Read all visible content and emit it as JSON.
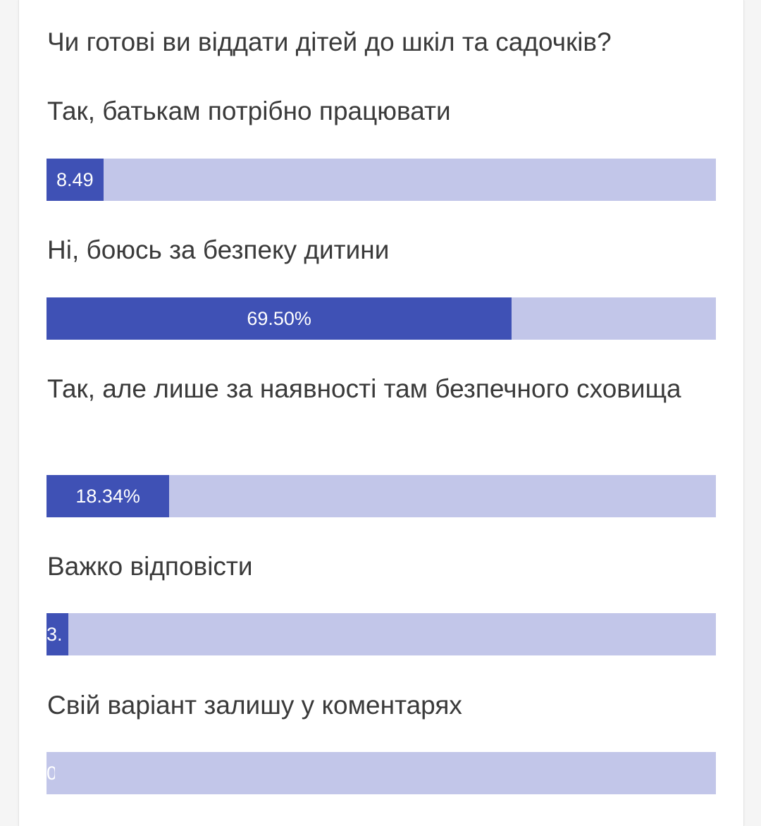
{
  "poll": {
    "question": "Чи готові ви віддати дітей до шкіл та садочків?",
    "options": [
      {
        "label": "Так, батькам потрібно працювати",
        "percent": 8.49,
        "bar_text": "8.49"
      },
      {
        "label": "Ні, боюсь за безпеку дитини",
        "percent": 69.5,
        "bar_text": "69.50%"
      },
      {
        "label": "Так, але лише за наявності там безпечного сховища",
        "percent": 18.34,
        "bar_text": "18.34%"
      },
      {
        "label": "Важко відповісти",
        "percent": 3.3,
        "bar_text": "3."
      },
      {
        "label": "Свій варіант залишу у коментарях",
        "percent": 0,
        "bar_text": "0"
      }
    ]
  },
  "colors": {
    "fill": "#3f51b5",
    "track": "#c2c6e9",
    "text": "#3a3a3a"
  }
}
